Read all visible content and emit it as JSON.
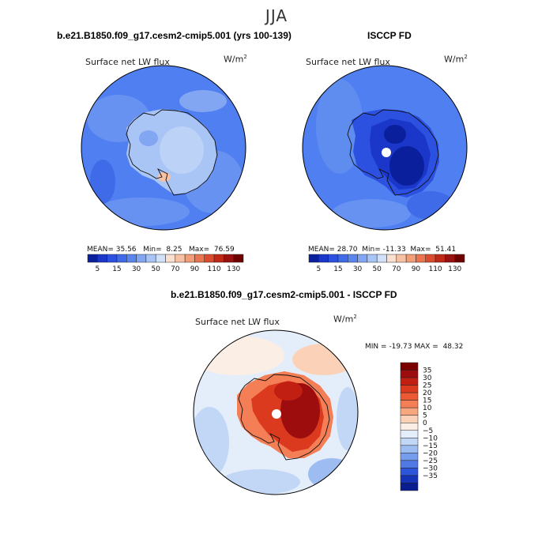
{
  "season": "JJA",
  "panels": [
    {
      "title": "b.e21.B1850.f09_g17.cesm2-cmip5.001 (yrs 100-139)",
      "variable": "Surface net LW flux",
      "units_base": "W/m",
      "units_exp": "2",
      "stats": {
        "mean_label": "MEAN=",
        "mean": "35.56",
        "min_label": "Min=",
        "min": "8.25",
        "max_label": "Max=",
        "max": "76.59"
      }
    },
    {
      "title": "ISCCP FD",
      "variable": "Surface net LW flux",
      "units_base": "W/m",
      "units_exp": "2",
      "stats": {
        "mean_label": "MEAN=",
        "mean": "28.70",
        "min_label": "Min=",
        "min": "-11.33",
        "max_label": "Max=",
        "max": "51.41"
      }
    },
    {
      "title": "b.e21.B1850.f09_g17.cesm2-cmip5.001 - ISCCP FD",
      "variable": "Surface net LW flux",
      "units_base": "W/m",
      "units_exp": "2",
      "stats": {
        "min_label": "MIN =",
        "min": "-19.73",
        "max_label": "MAX =",
        "max": "48.32"
      }
    }
  ],
  "chart_data": [
    {
      "type": "heatmap",
      "projection": "south-polar-stereographic",
      "title": "b.e21.B1850.f09_g17.cesm2-cmip5.001 (yrs 100-139)",
      "field": "Surface net LW flux (W/m2)",
      "mean": 35.56,
      "min": 8.25,
      "max": 76.59,
      "colorbar": {
        "orientation": "horizontal",
        "tick_labels": [
          "5",
          "15",
          "30",
          "50",
          "70",
          "90",
          "110",
          "130"
        ],
        "colors": [
          "#0a1f9c",
          "#1a37c9",
          "#2c50e0",
          "#3f6be8",
          "#5b86ee",
          "#82a6f2",
          "#a9c5f6",
          "#d0e1f9",
          "#f9e0d0",
          "#f8c1a3",
          "#f39d77",
          "#ea744f",
          "#da4b2f",
          "#bf2a18",
          "#9a1210",
          "#6e0000"
        ]
      }
    },
    {
      "type": "heatmap",
      "projection": "south-polar-stereographic",
      "title": "ISCCP FD",
      "field": "Surface net LW flux (W/m2)",
      "mean": 28.7,
      "min": -11.33,
      "max": 51.41,
      "colorbar": {
        "orientation": "horizontal",
        "tick_labels": [
          "5",
          "15",
          "30",
          "50",
          "70",
          "90",
          "110",
          "130"
        ],
        "colors": [
          "#0a1f9c",
          "#1a37c9",
          "#2c50e0",
          "#3f6be8",
          "#5b86ee",
          "#82a6f2",
          "#a9c5f6",
          "#d0e1f9",
          "#f9e0d0",
          "#f8c1a3",
          "#f39d77",
          "#ea744f",
          "#da4b2f",
          "#bf2a18",
          "#9a1210",
          "#6e0000"
        ]
      }
    },
    {
      "type": "heatmap",
      "projection": "south-polar-stereographic",
      "title": "b.e21.B1850.f09_g17.cesm2-cmip5.001 - ISCCP FD",
      "field": "Surface net LW flux (W/m2)",
      "min": -19.73,
      "max": 48.32,
      "colorbar": {
        "orientation": "vertical",
        "tick_labels": [
          "35",
          "30",
          "25",
          "20",
          "15",
          "10",
          "5",
          "0",
          "−5",
          "−10",
          "−15",
          "−20",
          "−25",
          "−30",
          "−35"
        ],
        "colors": [
          "#7a0000",
          "#9e0d0d",
          "#c01f12",
          "#dc3a1e",
          "#ec5a34",
          "#f47e55",
          "#f8a77f",
          "#fbd2b7",
          "#fbeee4",
          "#e4eefb",
          "#c2d6f6",
          "#9dbdf2",
          "#759ded",
          "#5079e5",
          "#2d55d9",
          "#1634b8",
          "#0a1d8f"
        ]
      }
    }
  ]
}
